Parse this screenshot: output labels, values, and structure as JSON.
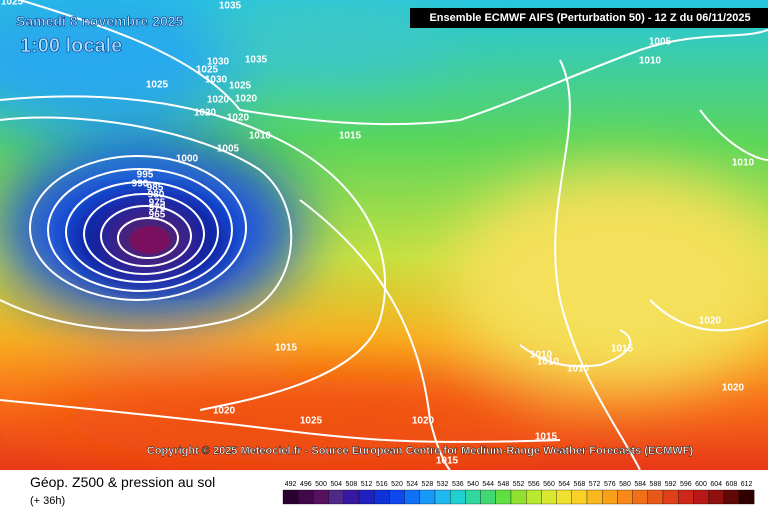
{
  "header": {
    "date": "Samedi 8 novembre 2025",
    "time": "1:00 locale",
    "model": "Ensemble ECMWF AIFS  (Perturbation 50)  -  12 Z du 06/11/2025"
  },
  "copyright": "Copyright © 2025 Meteociel.fr - Source European Centre for Medium-Range Weather Forecasts (ECMWF)",
  "isobar_labels": [
    "1035",
    "1025",
    "1005",
    "1010",
    "1030",
    "1035",
    "1025",
    "1025",
    "1030",
    "1025",
    "1020",
    "1020",
    "1020",
    "1020",
    "1010",
    "1015",
    "1005",
    "1000",
    "995",
    "990",
    "985",
    "980",
    "975",
    "970",
    "965",
    "1010",
    "1020",
    "1015",
    "1010",
    "1010",
    "1015",
    "1010",
    "1020",
    "1020",
    "1025",
    "1020",
    "1015",
    "1015"
  ],
  "footer": {
    "title": "Géop. Z500 & pression au sol",
    "lead": "(+ 36h)"
  },
  "scale": {
    "values": [
      492,
      496,
      500,
      504,
      508,
      512,
      516,
      520,
      524,
      528,
      532,
      536,
      540,
      544,
      548,
      552,
      556,
      560,
      564,
      568,
      572,
      576,
      580,
      584,
      588,
      592,
      596,
      600,
      604,
      608,
      612
    ]
  }
}
